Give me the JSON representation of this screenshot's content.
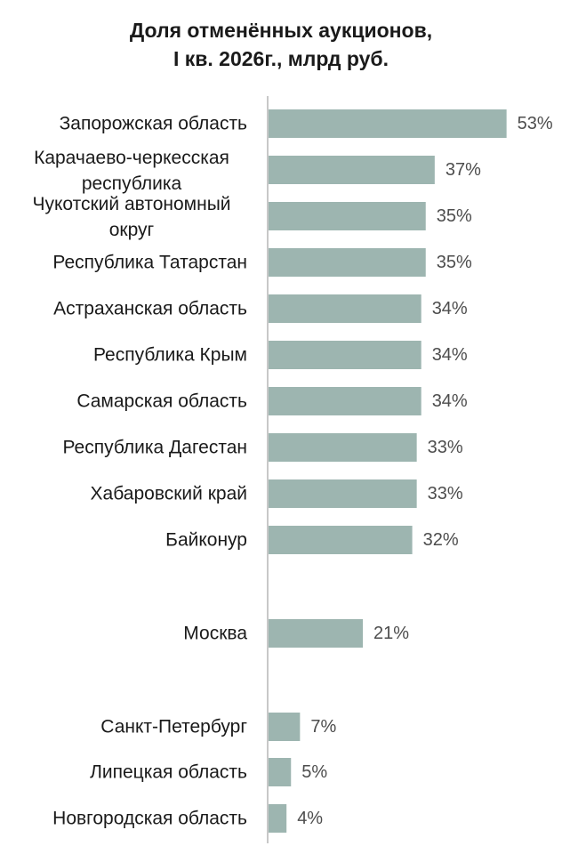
{
  "chart_data": {
    "type": "bar",
    "orientation": "horizontal",
    "title": [
      "Доля отменённых аукционов,",
      "I кв. 2026г., млрд руб."
    ],
    "categories": [
      [
        "Запорожская область"
      ],
      [
        "Карачаево-черкесская",
        "республика"
      ],
      [
        "Чукотский автономный",
        "округ"
      ],
      [
        "Республика Татарстан"
      ],
      [
        "Астраханская область"
      ],
      [
        "Республика Крым"
      ],
      [
        "Самарская область"
      ],
      [
        "Республика Дагестан"
      ],
      [
        "Хабаровский край"
      ],
      [
        "Байконур"
      ],
      [
        "Москва"
      ],
      [
        "Санкт-Петербург"
      ],
      [
        "Липецкая область"
      ],
      [
        "Новгородская область"
      ]
    ],
    "values": [
      53,
      37,
      35,
      35,
      34,
      34,
      34,
      33,
      33,
      32,
      21,
      7,
      5,
      4
    ],
    "value_labels": [
      "53%",
      "37%",
      "35%",
      "35%",
      "34%",
      "34%",
      "34%",
      "33%",
      "33%",
      "32%",
      "21%",
      "7%",
      "5%",
      "4%"
    ],
    "unit": "%",
    "bar_color": "#9db5b0",
    "axis_color": "#c8c8c8",
    "grid": false,
    "legend": "none"
  }
}
